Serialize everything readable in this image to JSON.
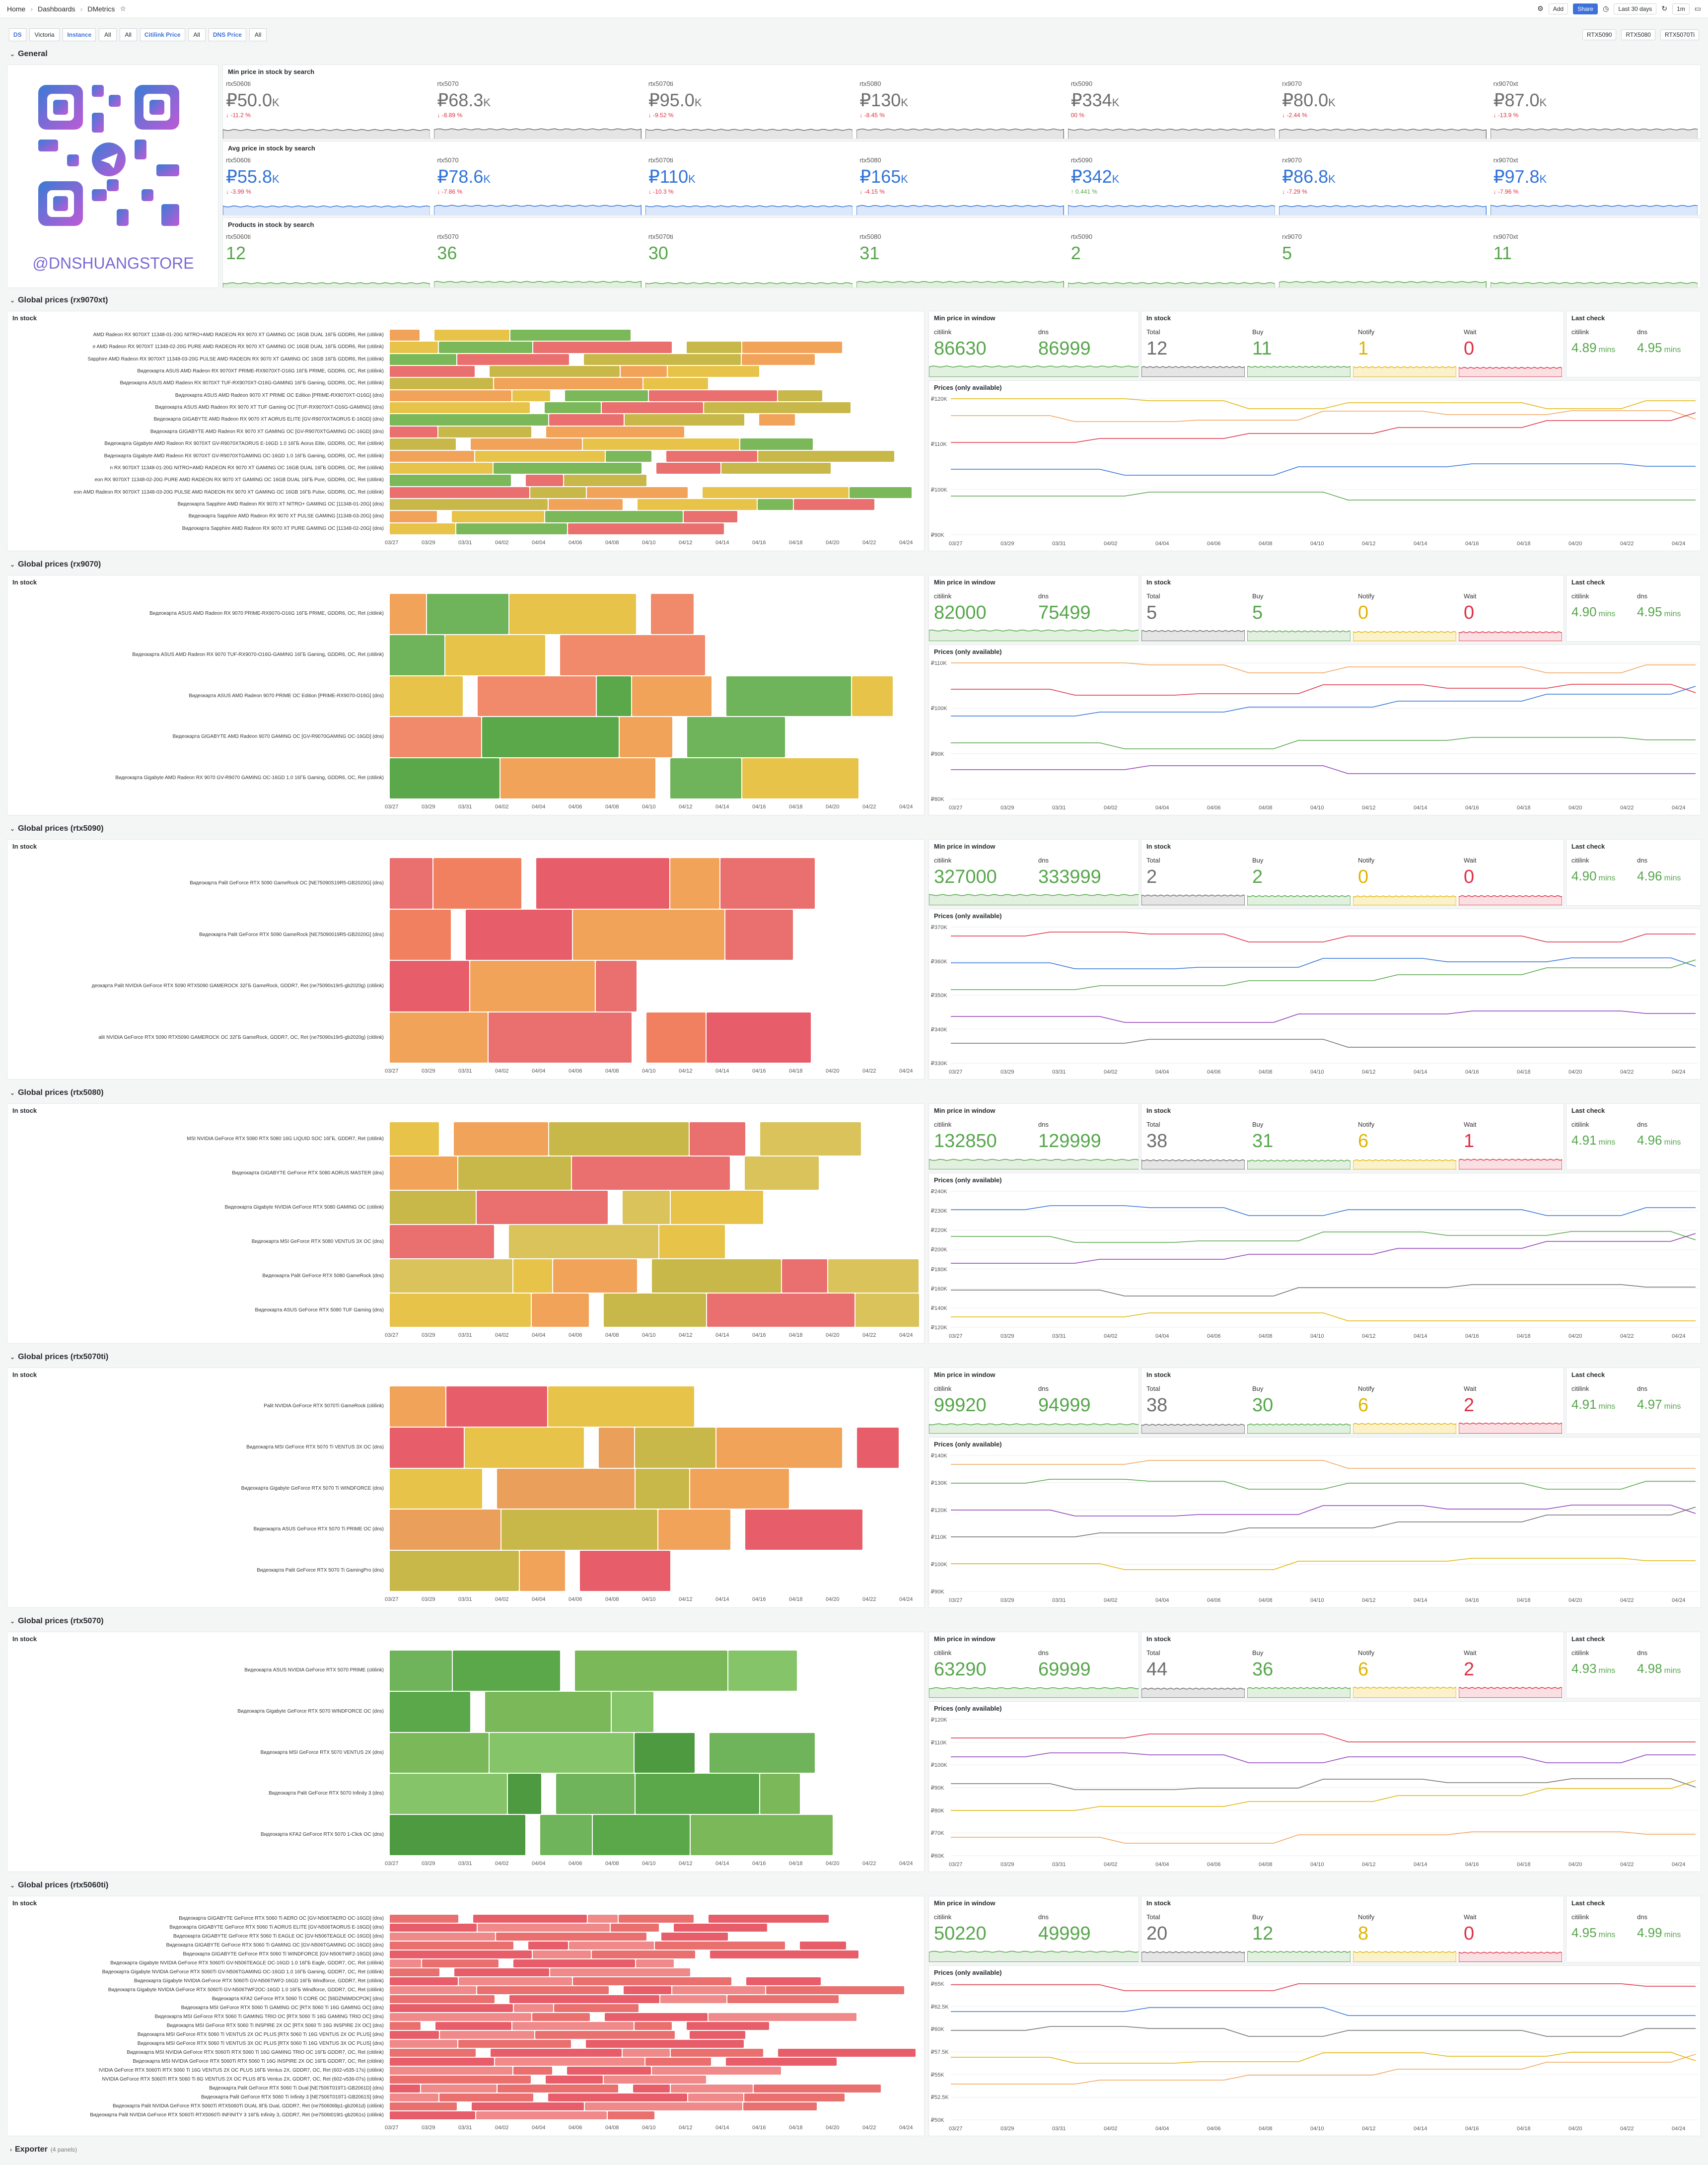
{
  "breadcrumb": {
    "home": "Home",
    "dashboards": "Dashboards",
    "current": "DMetrics"
  },
  "topbar": {
    "add": "Add",
    "share": "Share",
    "timerange": "Last 30 days",
    "refresh": "1m"
  },
  "vars": [
    {
      "label": "DS",
      "value": "Victoria"
    },
    {
      "label": "Instance",
      "value": "All"
    },
    {
      "label": "",
      "value": "All"
    },
    {
      "label": "Citilink Price",
      "value": "All"
    },
    {
      "label": "DNS Price",
      "value": "All"
    }
  ],
  "quicklinks": [
    "RTX5090",
    "RTX5080",
    "RTX5070Ti"
  ],
  "general": {
    "title": "General",
    "logo_text": "@DNSHUANGSTORE",
    "min_title": "Min price in stock by search",
    "avg_title": "Avg price in stock by search",
    "prod_title": "Products in stock by search",
    "min": [
      {
        "name": "rtx5060ti",
        "value": "₽50.0",
        "unit": "K",
        "delta": "↓ -11.2 %",
        "dc": "#e02f44"
      },
      {
        "name": "rtx5070",
        "value": "₽68.3",
        "unit": "K",
        "delta": "↓ -8.89 %",
        "dc": "#e02f44"
      },
      {
        "name": "rtx5070ti",
        "value": "₽95.0",
        "unit": "K",
        "delta": "↓ -9.52 %",
        "dc": "#e02f44"
      },
      {
        "name": "rtx5080",
        "value": "₽130",
        "unit": "K",
        "delta": "↓ -8.45 %",
        "dc": "#e02f44"
      },
      {
        "name": "rtx5090",
        "value": "₽334",
        "unit": "K",
        "delta": "00 %",
        "dc": "#e02f44"
      },
      {
        "name": "rx9070",
        "value": "₽80.0",
        "unit": "K",
        "delta": "↓ -2.44 %",
        "dc": "#e02f44"
      },
      {
        "name": "rx9070xt",
        "value": "₽87.0",
        "unit": "K",
        "delta": "↓ -13.9 %",
        "dc": "#e02f44"
      }
    ],
    "avg": [
      {
        "name": "rtx5060ti",
        "value": "₽55.8",
        "unit": "K",
        "delta": "↓ -3.99 %",
        "dc": "#e02f44"
      },
      {
        "name": "rtx5070",
        "value": "₽78.6",
        "unit": "K",
        "delta": "↓ -7.86 %",
        "dc": "#e02f44"
      },
      {
        "name": "rtx5070ti",
        "value": "₽110",
        "unit": "K",
        "delta": "↓ -10.3 %",
        "dc": "#e02f44"
      },
      {
        "name": "rtx5080",
        "value": "₽165",
        "unit": "K",
        "delta": "↓ -4.15 %",
        "dc": "#e02f44"
      },
      {
        "name": "rtx5090",
        "value": "₽342",
        "unit": "K",
        "delta": "↑ 0.441 %",
        "dc": "#56a64b"
      },
      {
        "name": "rx9070",
        "value": "₽86.8",
        "unit": "K",
        "delta": "↓ -7.29 %",
        "dc": "#e02f44"
      },
      {
        "name": "rx9070xt",
        "value": "₽97.8",
        "unit": "K",
        "delta": "↓ -7.96 %",
        "dc": "#e02f44"
      }
    ],
    "prod": [
      {
        "name": "rtx5060ti",
        "value": "12"
      },
      {
        "name": "rtx5070",
        "value": "36"
      },
      {
        "name": "rtx5070ti",
        "value": "30"
      },
      {
        "name": "rtx5080",
        "value": "31"
      },
      {
        "name": "rtx5090",
        "value": "2"
      },
      {
        "name": "rx9070",
        "value": "5"
      },
      {
        "name": "rx9070xt",
        "value": "11"
      }
    ]
  },
  "common": {
    "in_stock": "In stock",
    "min_window": "Min price in window",
    "in_stock2": "In stock",
    "last_check": "Last check",
    "prices": "Prices (only available)",
    "citilink": "citilink",
    "dns": "dns",
    "total": "Total",
    "buy": "Buy",
    "notify": "Notify",
    "wait": "Wait"
  },
  "dates": [
    "03/27",
    "03/29",
    "03/31",
    "04/02",
    "04/04",
    "04/06",
    "04/08",
    "04/10",
    "04/12",
    "04/14",
    "04/16",
    "04/18",
    "04/20",
    "04/22",
    "04/24"
  ],
  "sections": [
    {
      "title": "Global prices (rx9070xt)",
      "min_c": "86630",
      "min_d": "86999",
      "total": "12",
      "buy": "11",
      "notify": "1",
      "wait": "0",
      "lc_c": "4.89",
      "lc_d": "4.95",
      "unit": "mins",
      "yt": [
        "₽120K",
        "₽110K",
        "₽100K",
        "₽90K"
      ],
      "rows": [
        "AMD  Radeon RX 9070XT 11348-01-20G NITRO+AMD RADEON RX 9070 XT GAMING OC 16GB DUAL 16ГБ GDDR6, Ret (citilink)",
        "e AMD  Radeon RX 9070XT 11348-02-20G PURE AMD RADEON RX 9070 XT GAMING OC 16GB DUAL 16ГБ GDDR6, Ret (citilink)",
        "Sapphire AMD  Radeon RX 9070XT 11348-03-20G PULSE AMD RADEON RX 9070 XT GAMING OC 16GB 16ГБ GDDR6, Ret (citilink)",
        "Видеокарта ASUS AMD  Radeon RX 9070XT PRIME-RX9070XT-O16G 16ГБ PRIME, GDDR6, OC, Ret (citilink)",
        "Видеокарта ASUS AMD  Radeon RX 9070XT TUF-RX9070XT-O16G-GAMING 16ГБ Gaming, GDDR6, OC, Ret (citilink)",
        "Видеокарта ASUS AMD Radeon 9070 XT PRIME OC Edition [PRIME-RX9070XT-O16G] (dns)",
        "Видеокарта ASUS AMD Radeon RX 9070 XT TUF Gaming OC [TUF-RX9070XT-O16G-GAMING] (dns)",
        "Видеокарта GIGABYTE AMD Radeon RX 9070 XT AORUS ELITE [GV-R9070XTAORUS E-16GD] (dns)",
        "Видеокарта GIGABYTE AMD Radeon RX 9070 XT GAMING OC [GV-R9070XTGAMING OC-16GD] (dns)",
        "Видеокарта Gigabyte AMD  Radeon RX 9070XT GV-R9070XTAORUS E-16GD 1.0 16ГБ Aorus Elite, GDDR6, OC, Ret (citilink)",
        "Видеокарта Gigabyte AMD  Radeon RX 9070XT GV-R9070XTGAMING OC-16GD 1.0 16ГБ Gaming, GDDR6, OC, Ret (citilink)",
        "n RX 9070XT 11348-01-20G NITRO+AMD RADEON RX 9070 XT GAMING OC 16GB DUAL 16ГБ GDDR6, OC, Ret (citilink)",
        "eon RX 9070XT 11348-02-20G PURE AMD RADEON RX 9070 XT GAMING OC 16GB DUAL 16ГБ Pure, GDDR6, OC, Ret (citilink)",
        "eon AMD  Radeon RX 9070XT 11348-03-20G PULSE AMD RADEON RX 9070 XT GAMING OC 16GB 16ГБ Pulse, GDDR6, OC, Ret (citilink)",
        "Видеокарта Sapphire AMD Radeon RX 9070 XT NITRO+ GAMING OC [11348-01-20G] (dns)",
        "Видеокарта Sapphire AMD Radeon RX 9070 XT PULSE GAMING [11348-03-20G] (dns)",
        "Видеокарта Sapphire AMD Radeon RX 9070 XT PURE GAMING OC [11348-02-20G] (dns)"
      ]
    },
    {
      "title": "Global prices (rx9070)",
      "min_c": "82000",
      "min_d": "75499",
      "total": "5",
      "buy": "5",
      "notify": "0",
      "wait": "0",
      "lc_c": "4.90",
      "lc_d": "4.95",
      "unit": "mins",
      "yt": [
        "₽110K",
        "₽100K",
        "₽90K",
        "₽80K"
      ],
      "rows": [
        "Видеокарта ASUS AMD  Radeon RX 9070 PRIME-RX9070-O16G 16ГБ PRIME, GDDR6, OC,  Ret (citilink)",
        "Видеокарта ASUS AMD  Radeon RX 9070 TUF-RX9070-O16G-GAMING 16ГБ Gaming, GDDR6, OC,  Ret (citilink)",
        "Видеокарта ASUS AMD Radeon 9070 PRIME OC Edition [PRIME-RX9070-O16G] (dns)",
        "Видеокарта GIGABYTE AMD Radeon 9070 GAMING OC [GV-R9070GAMING OC-16GD] (dns)",
        "Видеокарта Gigabyte AMD  Radeon RX 9070 GV-R9070 GAMING OC-16GD 1.0 16ГБ Gaming, GDDR6, OC,  Ret (citilink)"
      ]
    },
    {
      "title": "Global prices (rtx5090)",
      "min_c": "327000",
      "min_d": "333999",
      "total": "2",
      "buy": "2",
      "notify": "0",
      "wait": "0",
      "lc_c": "4.90",
      "lc_d": "4.96",
      "unit": "mins",
      "yt": [
        "₽370K",
        "₽360K",
        "₽350K",
        "₽340K",
        "₽330K"
      ],
      "rows": [
        "Видеокарта Palit GeForce RTX 5090 GameRock OC [NE75090S19R5-GB2020G] (dns)",
        "Видеокарта Palit GeForce RTX 5090 GameRock [NE75090019R5-GB2020G] (dns)",
        "деокарта Palit NVIDIA  GeForce RTX 5090 RTX5090 GAMEROCK 32ГБ GameRock, GDDR7, Ret (ne75090s19r5-gb2020g) (citilink)",
        "alit NVIDIA  GeForce RTX 5090 RTX5090 GAMEROCK OC 32ГБ GameRock, GDDR7, OC,  Ret (ne75090s19r5-gb2020g) (citilink)"
      ]
    },
    {
      "title": "Global prices (rtx5080)",
      "min_c": "132850",
      "min_d": "129999",
      "total": "38",
      "buy": "31",
      "notify": "6",
      "wait": "1",
      "lc_c": "4.91",
      "lc_d": "4.96",
      "unit": "mins",
      "yt": [
        "₽240K",
        "₽230K",
        "₽220K",
        "₽200K",
        "₽180K",
        "₽160K",
        "₽140K",
        "₽120K"
      ],
      "rows": [
        "MSI NVIDIA  GeForce RTX 5080 RTX 5080 16G LIQUID SOC 16ГБ, GDDR7, Ret (citilink)",
        "Видеокарта GIGABYTE GeForce RTX 5080 AORUS MASTER (dns)",
        "Видеокарта Gigabyte NVIDIA  GeForce RTX 5080 GAMING OC (citilink)",
        "Видеокарта MSI GeForce RTX 5080 VENTUS 3X OC (dns)",
        "Видеокарта Palit GeForce RTX 5080 GameRock (dns)",
        "Видеокарта ASUS GeForce RTX 5080 TUF Gaming (dns)"
      ]
    },
    {
      "title": "Global prices (rtx5070ti)",
      "min_c": "99920",
      "min_d": "94999",
      "total": "38",
      "buy": "30",
      "notify": "6",
      "wait": "2",
      "lc_c": "4.91",
      "lc_d": "4.97",
      "unit": "mins",
      "yt": [
        "₽140K",
        "₽130K",
        "₽120K",
        "₽110K",
        "₽100K",
        "₽90K"
      ],
      "rows": [
        "Palit NVIDIA  GeForce RTX 5070Ti GameRock (citilink)",
        "Видеокарта MSI GeForce RTX 5070 Ti VENTUS 3X OC (dns)",
        "Видеокарта Gigabyte GeForce RTX 5070 Ti WINDFORCE (dns)",
        "Видеокарта ASUS GeForce RTX 5070 Ti PRIME OC (dns)",
        "Видеокарта Palit GeForce RTX 5070 Ti GamingPro (dns)"
      ]
    },
    {
      "title": "Global prices (rtx5070)",
      "min_c": "63290",
      "min_d": "69999",
      "total": "44",
      "buy": "36",
      "notify": "6",
      "wait": "2",
      "lc_c": "4.93",
      "lc_d": "4.98",
      "unit": "mins",
      "yt": [
        "₽120K",
        "₽110K",
        "₽100K",
        "₽90K",
        "₽80K",
        "₽70K",
        "₽60K"
      ],
      "rows": [
        "Видеокарта ASUS NVIDIA  GeForce RTX 5070 PRIME (citilink)",
        "Видеокарта Gigabyte GeForce RTX 5070 WINDFORCE OC (dns)",
        "Видеокарта MSI GeForce RTX 5070 VENTUS 2X (dns)",
        "Видеокарта Palit GeForce RTX 5070 Infinity 3 (dns)",
        "Видеокарта KFA2 GeForce RTX 5070 1-Click OC (dns)"
      ]
    },
    {
      "title": "Global prices (rtx5060ti)",
      "min_c": "50220",
      "min_d": "49999",
      "total": "20",
      "buy": "12",
      "notify": "8",
      "wait": "0",
      "lc_c": "4.95",
      "lc_d": "4.99",
      "unit": "mins",
      "yt": [
        "₽65K",
        "₽62.5K",
        "₽60K",
        "₽57.5K",
        "₽55K",
        "₽52.5K",
        "₽50K"
      ],
      "rows": [
        "Видеокарта GIGABYTE GeForce RTX 5060 Ti AERO OC [GV-N506TAERO OC-16GD] (dns)",
        "Видеокарта GIGABYTE GeForce RTX 5060 Ti AORUS ELITE [GV-N506TAORUS E-16GD] (dns)",
        "Видеокарта GIGABYTE GeForce RTX 5060 Ti EAGLE OC [GV-N506TEAGLE OC-16GD] (dns)",
        "Видеокарта GIGABYTE GeForce RTX 5060 Ti GAMING OC [GV-N506TGAMING OC-16GD] (dns)",
        "Видеокарта GIGABYTE GeForce RTX 5060 Ti WINDFORCE [GV-N506TWF2-16GD] (dns)",
        "Видеокарта Gigabyte NVIDIA  GeForce RTX 5060Ti GV-N506TEAGLE OC-16GD 1.0 16ГБ Eagle, GDDR7, OC, Ret (citilink)",
        "Видеокарта Gigabyte NVIDIA  GeForce RTX 5060Ti GV-N506TGAMING OC-16GD 1.0 16ГБ Gaming, GDDR7, OC, Ret (citilink)",
        "Видеокарта Gigabyte NVIDIA  GeForce RTX 5060Ti GV-N506TWF2-16GD 16ГБ Windforce, GDDR7, Ret (citilink)",
        "Видеокарта Gigabyte NVIDIA  GeForce RTX 5060Ti GV-N506TWF2OC-16GD 1.0 16ГБ Windforce, GDDR7, OC, Ret (citilink)",
        "Видеокарта KFA2 GeForce RTX 5060 Ti CORE OC [56DZN6MDCPOK] (dns)",
        "Видеокарта MSI GeForce RTX 5060 Ti GAMING OC [RTX 5060 Ti 16G GAMING OC] (dns)",
        "Видеокарта MSI GeForce RTX 5060 Ti GAMING TRIO OC [RTX 5060 Ti 16G GAMING TRIO OC] (dns)",
        "Видеокарта MSI GeForce RTX 5060 Ti INSPIRE 2X OC [RTX 5060 Ti 16G INSPIRE 2X OC] (dns)",
        "Видеокарта MSI GeForce RTX 5060 Ti VENTUS 2X OC PLUS [RTX 5060 Ti 16G VENTUS 2X OC PLUS] (dns)",
        "Видеокарта MSI GeForce RTX 5060 Ti VENTUS 3X OC PLUS [RTX 5060 Ti 16G VENTUS 3X OC PLUS] (dns)",
        "Видеокарта MSI NVIDIA  GeForce RTX 5060Ti RTX 5060 Ti 16G GAMING TRIO OC 16ГБ GDDR7, OC, Ret (citilink)",
        "Видеокарта MSI NVIDIA  GeForce RTX 5060Ti RTX 5060 Ti 16G INSPIRE 2X OC 16ГБ GDDR7, OC, Ret (citilink)",
        "IVIDIA  GeForce RTX 5060Ti RTX 5060 Ti 16G VENTUS 2X OC PLUS 16ГБ Ventus 2X, GDDR7, OC, Ret (602-v535-17s) (citilink)",
        "NVIDIA  GeForce RTX 5060Ti RTX 5060 Ti 8G VENTUS 2X OC PLUS 8ГБ Ventus 2X, GDDR7, OC, Ret (602-v536-07s) (citilink)",
        "Видеокарта Palit GeForce RTX 5060 Ti Dual [NE7506T019T1-GB2061D] (dns)",
        "Видеокарта Palit GeForce RTX 5060 Ti Infinity 3 [NE7506T019T1-GB2061S] (dns)",
        "Видеокарта Palit NVIDIA  GeForce RTX 5060Ti RTX5060Ti DUAL 8ГБ Dual, GDDR7, Ret (ne75060ti9p1-gb2061d) (citilink)",
        "Видеокарта Palit NVIDIA  GeForce RTX 5060Ti RTX5060Ti INFINITY 3 16ГБ Infinity 3, GDDR7, Ret (ne7506t019t1-gb2061s) (citilink)"
      ]
    }
  ],
  "exporter": {
    "title": "Exporter",
    "count": "(4 panels)"
  }
}
